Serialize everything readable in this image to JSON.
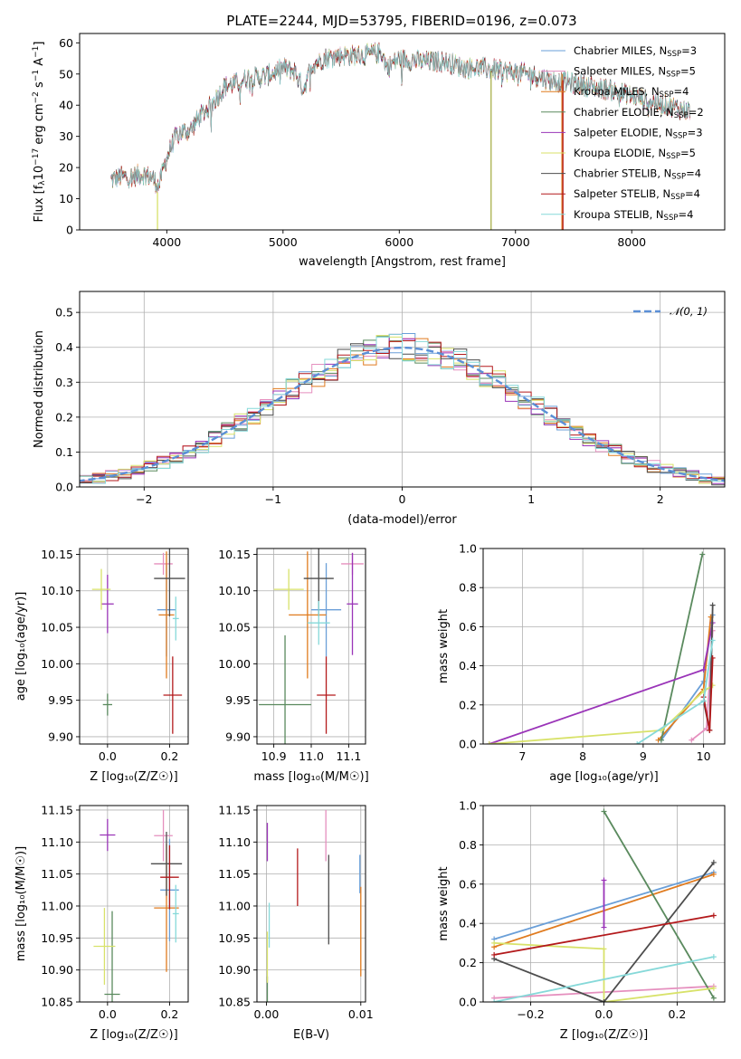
{
  "figure_title": "PLATE=2244, MJD=53795, FIBERID=0196, z=0.073",
  "colors": {
    "chabrier_miles": "#6a9fd8",
    "salpeter_miles": "#e58fbe",
    "kroupa_miles": "#e07b1f",
    "chabrier_elodie": "#5a8a5e",
    "salpeter_elodie": "#9a34b8",
    "kroupa_elodie": "#d8e26a",
    "chabrier_stelib": "#4d4d4d",
    "salpeter_stelib": "#b3191b",
    "kroupa_stelib": "#86d9d9",
    "normal_curve": "#5b8fd6",
    "grid": "#b0b0b0"
  },
  "chart_data": [
    {
      "id": "spectrum",
      "type": "line",
      "title": "PLATE=2244, MJD=53795, FIBERID=0196, z=0.073",
      "xlabel": "wavelength [Angstrom, rest frame]",
      "ylabel": "Flux [f_λ 10^-17 erg cm^-2 s^-1 A^-1]",
      "xlim": [
        3250,
        8800
      ],
      "ylim": [
        0,
        63
      ],
      "xticks": [
        "4000",
        "5000",
        "6000",
        "7000",
        "8000"
      ],
      "yticks": [
        "0",
        "10",
        "20",
        "30",
        "40",
        "50",
        "60"
      ],
      "grid": false,
      "legend_position": "top-right",
      "legend": [
        {
          "base": "Chabrier MILES, N",
          "sub": "SSP",
          "tail": "=3",
          "color": "#6a9fd8"
        },
        {
          "base": "Salpeter MILES, N",
          "sub": "SSP",
          "tail": "=5",
          "color": "#e58fbe"
        },
        {
          "base": "Kroupa MILES, N",
          "sub": "SSP",
          "tail": "=4",
          "color": "#e07b1f"
        },
        {
          "base": "Chabrier ELODIE, N",
          "sub": "SSP",
          "tail": "=2",
          "color": "#5a8a5e"
        },
        {
          "base": "Salpeter ELODIE, N",
          "sub": "SSP",
          "tail": "=3",
          "color": "#9a34b8"
        },
        {
          "base": "Kroupa ELODIE, N",
          "sub": "SSP",
          "tail": "=5",
          "color": "#d8e26a"
        },
        {
          "base": "Chabrier STELIB, N",
          "sub": "SSP",
          "tail": "=4",
          "color": "#4d4d4d"
        },
        {
          "base": "Salpeter STELIB, N",
          "sub": "SSP",
          "tail": "=4",
          "color": "#b3191b"
        },
        {
          "base": "Kroupa STELIB, N",
          "sub": "SSP",
          "tail": "=4",
          "color": "#86d9d9"
        }
      ],
      "continuum": [
        [
          3520,
          16
        ],
        [
          3600,
          17
        ],
        [
          3700,
          17
        ],
        [
          3800,
          18
        ],
        [
          3870,
          17
        ],
        [
          3930,
          14
        ],
        [
          3990,
          22
        ],
        [
          4050,
          28
        ],
        [
          4100,
          31
        ],
        [
          4200,
          32
        ],
        [
          4300,
          37
        ],
        [
          4400,
          41
        ],
        [
          4500,
          46
        ],
        [
          4600,
          47
        ],
        [
          4700,
          49
        ],
        [
          4800,
          49
        ],
        [
          4900,
          50
        ],
        [
          5000,
          52
        ],
        [
          5100,
          51
        ],
        [
          5175,
          45
        ],
        [
          5250,
          53
        ],
        [
          5350,
          55
        ],
        [
          5500,
          56
        ],
        [
          5700,
          56
        ],
        [
          5850,
          57
        ],
        [
          5895,
          52
        ],
        [
          6000,
          55
        ],
        [
          6200,
          54
        ],
        [
          6400,
          54
        ],
        [
          6560,
          52
        ],
        [
          6700,
          52
        ],
        [
          6900,
          51
        ],
        [
          7100,
          50
        ],
        [
          7300,
          48
        ],
        [
          7500,
          47
        ],
        [
          7800,
          45
        ],
        [
          8000,
          43
        ],
        [
          8200,
          41
        ],
        [
          8400,
          39
        ],
        [
          8500,
          38
        ]
      ],
      "glitches": [
        {
          "x": 3920,
          "ymin": 0,
          "ymax": 12,
          "color": "#d8e26a"
        },
        {
          "x": 6790,
          "ymin": 0,
          "ymax": 51,
          "color": "#a8b04a"
        },
        {
          "x": 7400,
          "ymin": 0,
          "ymax": 50,
          "color": "#e07b1f"
        },
        {
          "x": 7408,
          "ymin": 0,
          "ymax": 48,
          "color": "#b3191b"
        }
      ]
    },
    {
      "id": "residual_hist",
      "type": "bar",
      "xlabel": "(data-model)/error",
      "ylabel": "Normed distribution",
      "xlim": [
        -2.5,
        2.5
      ],
      "ylim": [
        0,
        0.56
      ],
      "xticks": [
        "−2",
        "−1",
        "0",
        "1",
        "2"
      ],
      "yticks": [
        "0.0",
        "0.1",
        "0.2",
        "0.3",
        "0.4",
        "0.5"
      ],
      "grid": true,
      "legend_position": "top-right",
      "legend_label": "𝒩(0, 1)",
      "bin_width": 0.1
    },
    {
      "id": "age_vs_Z",
      "type": "scatter",
      "xlabel": "Z [log₁₀(Z/Z☉)]",
      "ylabel": "age  [log₁₀(age/yr)]",
      "xlim": [
        -0.09,
        0.26
      ],
      "ylim": [
        9.89,
        10.158
      ],
      "xticks": [
        "0.0",
        "0.2"
      ],
      "yticks": [
        "9.90",
        "9.95",
        "10.00",
        "10.05",
        "10.10",
        "10.15"
      ],
      "grid": true,
      "points": [
        {
          "x": 0.19,
          "xerr": 0.03,
          "y": 10.074,
          "yerr": 0.064,
          "color": "#6a9fd8"
        },
        {
          "x": 0.18,
          "xerr": 0.03,
          "y": 10.137,
          "yerr": 0.015,
          "color": "#e58fbe"
        },
        {
          "x": 0.19,
          "xerr": 0.025,
          "y": 10.067,
          "yerr": 0.087,
          "color": "#e07b1f"
        },
        {
          "x": 0.0,
          "xerr": 0.015,
          "y": 9.944,
          "yerr": 0.015,
          "color": "#5a8a5e"
        },
        {
          "x": 0.0,
          "xerr": 0.02,
          "y": 10.082,
          "yerr": 0.04,
          "color": "#9a34b8"
        },
        {
          "x": -0.02,
          "xerr": 0.03,
          "y": 10.102,
          "yerr": 0.028,
          "color": "#d8e26a"
        },
        {
          "x": 0.2,
          "xerr": 0.05,
          "y": 10.117,
          "yerr": 0.052,
          "color": "#4d4d4d"
        },
        {
          "x": 0.21,
          "xerr": 0.03,
          "y": 9.957,
          "yerr": 0.053,
          "color": "#b3191b"
        },
        {
          "x": 0.22,
          "xerr": 0.01,
          "y": 10.062,
          "yerr": 0.03,
          "color": "#86d9d9"
        }
      ]
    },
    {
      "id": "age_vs_mass",
      "type": "scatter",
      "xlabel": "mass [log₁₀(M/M☉)]",
      "ylabel": "",
      "xlim": [
        10.855,
        11.145
      ],
      "ylim": [
        9.89,
        10.158
      ],
      "xticks": [
        "10.9",
        "11.0",
        "11.1"
      ],
      "yticks": [
        "9.90",
        "9.95",
        "10.00",
        "10.05",
        "10.10",
        "10.15"
      ],
      "grid": true,
      "points": [
        {
          "x": 11.04,
          "xerr": 0.04,
          "y": 10.074,
          "yerr": 0.064,
          "color": "#6a9fd8"
        },
        {
          "x": 11.11,
          "xerr": 0.03,
          "y": 10.137,
          "yerr": 0.015,
          "color": "#e58fbe"
        },
        {
          "x": 10.99,
          "xerr": 0.05,
          "y": 10.067,
          "yerr": 0.087,
          "color": "#e07b1f"
        },
        {
          "x": 10.93,
          "xerr": 0.07,
          "y": 9.944,
          "yerr": 0.095,
          "color": "#5a8a5e"
        },
        {
          "x": 11.11,
          "xerr": 0.015,
          "y": 10.082,
          "yerr": 0.07,
          "color": "#9a34b8"
        },
        {
          "x": 10.94,
          "xerr": 0.04,
          "y": 10.102,
          "yerr": 0.028,
          "color": "#d8e26a"
        },
        {
          "x": 11.02,
          "xerr": 0.04,
          "y": 10.117,
          "yerr": 0.052,
          "color": "#4d4d4d"
        },
        {
          "x": 11.04,
          "xerr": 0.025,
          "y": 9.957,
          "yerr": 0.053,
          "color": "#b3191b"
        },
        {
          "x": 11.02,
          "xerr": 0.03,
          "y": 10.056,
          "yerr": 0.03,
          "color": "#86d9d9"
        }
      ]
    },
    {
      "id": "massweight_vs_age",
      "type": "line",
      "xlabel": "age  [log₁₀(age/yr)]",
      "ylabel": "mass weight",
      "xlim": [
        6.35,
        10.35
      ],
      "ylim": [
        0,
        1
      ],
      "xticks": [
        "7",
        "8",
        "9",
        "10"
      ],
      "yticks": [
        "0.0",
        "0.2",
        "0.4",
        "0.6",
        "0.8",
        "1.0"
      ],
      "grid": true,
      "series": [
        {
          "color": "#6a9fd8",
          "points": [
            [
              9.3,
              0.02
            ],
            [
              10.0,
              0.32
            ],
            [
              10.15,
              0.66
            ]
          ]
        },
        {
          "color": "#e58fbe",
          "points": [
            [
              9.8,
              0.02
            ],
            [
              10.05,
              0.08
            ],
            [
              10.15,
              0.58
            ]
          ]
        },
        {
          "color": "#e07b1f",
          "points": [
            [
              9.25,
              0.02
            ],
            [
              10.0,
              0.28
            ],
            [
              10.12,
              0.65
            ]
          ]
        },
        {
          "color": "#5a8a5e",
          "points": [
            [
              9.3,
              0.02
            ],
            [
              9.98,
              0.97
            ]
          ]
        },
        {
          "color": "#9a34b8",
          "points": [
            [
              6.45,
              0.0
            ],
            [
              10.0,
              0.38
            ],
            [
              10.15,
              0.62
            ]
          ]
        },
        {
          "color": "#d8e26a",
          "points": [
            [
              6.45,
              0.0
            ],
            [
              9.3,
              0.07
            ],
            [
              10.0,
              0.27
            ],
            [
              10.15,
              0.3
            ]
          ]
        },
        {
          "color": "#4d4d4d",
          "points": [
            [
              10.0,
              0.22
            ],
            [
              10.1,
              0.07
            ],
            [
              10.15,
              0.71
            ]
          ]
        },
        {
          "color": "#b3191b",
          "points": [
            [
              10.0,
              0.24
            ],
            [
              10.1,
              0.07
            ],
            [
              10.15,
              0.44
            ]
          ]
        },
        {
          "color": "#86d9d9",
          "points": [
            [
              8.9,
              0.0
            ],
            [
              10.0,
              0.22
            ],
            [
              10.15,
              0.53
            ]
          ]
        }
      ]
    },
    {
      "id": "mass_vs_Z",
      "type": "scatter",
      "xlabel": "Z [log₁₀(Z/Z☉)]",
      "ylabel": "mass [log₁₀(M/M☉)]",
      "xlim": [
        -0.09,
        0.26
      ],
      "ylim": [
        10.85,
        11.157
      ],
      "xticks": [
        "0.0",
        "0.2"
      ],
      "yticks": [
        "10.85",
        "10.90",
        "10.95",
        "11.00",
        "11.05",
        "11.10",
        "11.15"
      ],
      "grid": true,
      "points": [
        {
          "x": 0.2,
          "xerr": 0.03,
          "y": 11.025,
          "yerr": 0.08,
          "color": "#6a9fd8"
        },
        {
          "x": 0.18,
          "xerr": 0.03,
          "y": 11.11,
          "yerr": 0.04,
          "color": "#e58fbe"
        },
        {
          "x": 0.19,
          "xerr": 0.04,
          "y": 10.997,
          "yerr": 0.1,
          "color": "#e07b1f"
        },
        {
          "x": 0.015,
          "xerr": 0.025,
          "y": 10.862,
          "yerr": 0.13,
          "color": "#5a8a5e"
        },
        {
          "x": 0.0,
          "xerr": 0.025,
          "y": 11.111,
          "yerr": 0.025,
          "color": "#9a34b8"
        },
        {
          "x": -0.01,
          "xerr": 0.035,
          "y": 10.937,
          "yerr": 0.06,
          "color": "#d8e26a"
        },
        {
          "x": 0.19,
          "xerr": 0.05,
          "y": 11.066,
          "yerr": 0.05,
          "color": "#4d4d4d"
        },
        {
          "x": 0.2,
          "xerr": 0.03,
          "y": 11.045,
          "yerr": 0.05,
          "color": "#b3191b"
        },
        {
          "x": 0.22,
          "xerr": 0.01,
          "y": 10.988,
          "yerr": 0.045,
          "color": "#86d9d9"
        }
      ]
    },
    {
      "id": "mass_vs_EBV",
      "type": "scatter",
      "xlabel": "E(B-V)",
      "ylabel": "",
      "xlim": [
        -0.001,
        0.0105
      ],
      "ylim": [
        10.85,
        11.157
      ],
      "xticks": [
        "0.00",
        "0.01"
      ],
      "yticks": [
        "10.85",
        "10.90",
        "10.95",
        "11.00",
        "11.05",
        "11.10",
        "11.15"
      ],
      "grid": true,
      "points": [
        {
          "x": 0.0099,
          "xerr": 0,
          "y": 11.05,
          "yerr": 0.03,
          "color": "#6a9fd8"
        },
        {
          "x": 0.0063,
          "xerr": 0,
          "y": 11.11,
          "yerr": 0.04,
          "color": "#e58fbe"
        },
        {
          "x": 0.01,
          "xerr": 0,
          "y": 10.96,
          "yerr": 0.07,
          "color": "#e07b1f"
        },
        {
          "x": 0.0001,
          "xerr": 0,
          "y": 10.87,
          "yerr": 0.02,
          "color": "#5a8a5e"
        },
        {
          "x": 0.0001,
          "xerr": 0,
          "y": 11.1,
          "yerr": 0.03,
          "color": "#9a34b8"
        },
        {
          "x": 0.0001,
          "xerr": 0,
          "y": 10.92,
          "yerr": 0.04,
          "color": "#d8e26a"
        },
        {
          "x": 0.0066,
          "xerr": 0,
          "y": 11.01,
          "yerr": 0.07,
          "color": "#4d4d4d"
        },
        {
          "x": 0.0033,
          "xerr": 0,
          "y": 11.045,
          "yerr": 0.045,
          "color": "#b3191b"
        },
        {
          "x": 0.0003,
          "xerr": 0,
          "y": 10.97,
          "yerr": 0.035,
          "color": "#86d9d9"
        }
      ]
    },
    {
      "id": "massweight_vs_Z",
      "type": "line",
      "xlabel": "Z [log₁₀(Z/Z☉)]",
      "ylabel": "mass weight",
      "xlim": [
        -0.33,
        0.33
      ],
      "ylim": [
        0,
        1
      ],
      "xticks": [
        "−0.2",
        "0.0",
        "0.2"
      ],
      "yticks": [
        "0.0",
        "0.2",
        "0.4",
        "0.6",
        "0.8",
        "1.0"
      ],
      "grid": true,
      "series": [
        {
          "color": "#6a9fd8",
          "points": [
            [
              -0.3,
              0.32
            ],
            [
              0.3,
              0.66
            ]
          ]
        },
        {
          "color": "#e58fbe",
          "points": [
            [
              -0.3,
              0.02
            ],
            [
              0.3,
              0.08
            ]
          ]
        },
        {
          "color": "#e07b1f",
          "points": [
            [
              -0.3,
              0.28
            ],
            [
              0.3,
              0.65
            ]
          ]
        },
        {
          "color": "#5a8a5e",
          "points": [
            [
              0.0,
              0.97
            ],
            [
              0.3,
              0.02
            ]
          ]
        },
        {
          "color": "#9a34b8",
          "points": [
            [
              0.0,
              0.62
            ],
            [
              0.0,
              0.38
            ]
          ]
        },
        {
          "color": "#d8e26a",
          "points": [
            [
              -0.3,
              0.3
            ],
            [
              0.0,
              0.27
            ],
            [
              0.0,
              0.0
            ],
            [
              0.3,
              0.07
            ]
          ]
        },
        {
          "color": "#4d4d4d",
          "points": [
            [
              -0.3,
              0.22
            ],
            [
              0.0,
              0.0
            ],
            [
              0.3,
              0.71
            ]
          ]
        },
        {
          "color": "#b3191b",
          "points": [
            [
              -0.3,
              0.24
            ],
            [
              0.3,
              0.44
            ]
          ]
        },
        {
          "color": "#86d9d9",
          "points": [
            [
              -0.3,
              0.0
            ],
            [
              0.3,
              0.23
            ]
          ]
        }
      ]
    }
  ]
}
